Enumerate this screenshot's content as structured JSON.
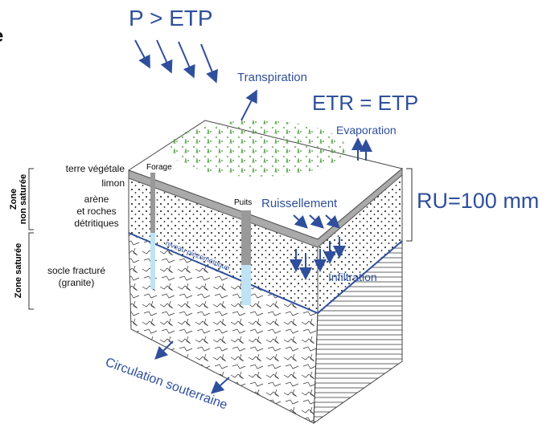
{
  "header_fragment": "e",
  "climate": {
    "precipitation": "P > ETP",
    "transpiration": "Transpiration",
    "etr": "ETR = ETP",
    "evaporation": "Evaporation",
    "ru": "RU=100 mm"
  },
  "flows": {
    "runoff": "Ruissellement",
    "infiltration": "Infiltration",
    "water_table": "niveau piézométrique",
    "groundwater": "Circulation souterraine"
  },
  "wells": {
    "borehole": "Forage",
    "well": "Puits"
  },
  "layers": [
    {
      "lines": [
        "terre végétale"
      ]
    },
    {
      "lines": [
        "limon"
      ]
    },
    {
      "lines": [
        "arène",
        "et roches",
        "détritiques"
      ]
    },
    {
      "lines": [
        "socle fracturé",
        "(granite)"
      ]
    }
  ],
  "zones": [
    {
      "lines": [
        "Zone",
        "non saturée"
      ]
    },
    {
      "lines": [
        "Zone saturée"
      ]
    }
  ]
}
